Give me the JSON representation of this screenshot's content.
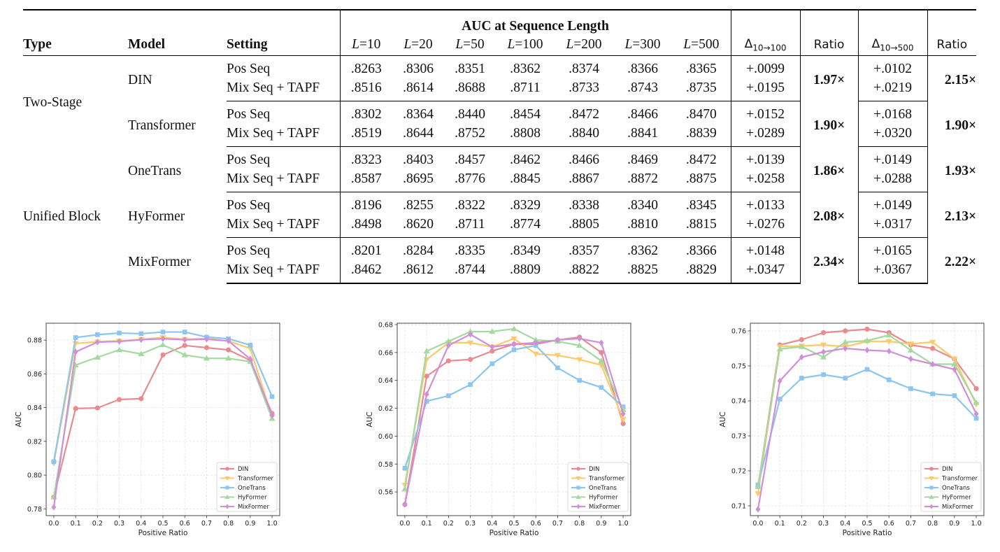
{
  "table": {
    "header_top": "AUC at Sequence Length",
    "col_type": "Type",
    "col_model": "Model",
    "col_setting": "Setting",
    "l_prefix": "L",
    "lengths": [
      "=10",
      "=20",
      "=50",
      "=100",
      "=200",
      "=300",
      "=500"
    ],
    "delta1_main": "Δ",
    "delta1_sub": "10→100",
    "ratio1": "Ratio",
    "delta2_main": "Δ",
    "delta2_sub": "10→500",
    "ratio2": "Ratio",
    "types": [
      "Two-Stage",
      "Unified Block"
    ],
    "rows": [
      {
        "model": "DIN",
        "settings": [
          "Pos Seq",
          "Mix Seq + TAPF"
        ],
        "values": [
          [
            ".8263",
            ".8306",
            ".8351",
            ".8362",
            ".8374",
            ".8366",
            ".8365"
          ],
          [
            ".8516",
            ".8614",
            ".8688",
            ".8711",
            ".8733",
            ".8743",
            ".8735"
          ]
        ],
        "d1": [
          "+.0099",
          "+.0195"
        ],
        "r1": "1.97×",
        "d2": [
          "+.0102",
          "+.0219"
        ],
        "r2": "2.15×"
      },
      {
        "model": "Transformer",
        "settings": [
          "Pos Seq",
          "Mix Seq + TAPF"
        ],
        "values": [
          [
            ".8302",
            ".8364",
            ".8440",
            ".8454",
            ".8472",
            ".8466",
            ".8470"
          ],
          [
            ".8519",
            ".8644",
            ".8752",
            ".8808",
            ".8840",
            ".8841",
            ".8839"
          ]
        ],
        "d1": [
          "+.0152",
          "+.0289"
        ],
        "r1": "1.90×",
        "d2": [
          "+.0168",
          "+.0320"
        ],
        "r2": "1.90×"
      },
      {
        "model": "OneTrans",
        "settings": [
          "Pos Seq",
          "Mix Seq + TAPF"
        ],
        "values": [
          [
            ".8323",
            ".8403",
            ".8457",
            ".8462",
            ".8466",
            ".8469",
            ".8472"
          ],
          [
            ".8587",
            ".8695",
            ".8776",
            ".8845",
            ".8867",
            ".8872",
            ".8875"
          ]
        ],
        "d1": [
          "+.0139",
          "+.0258"
        ],
        "r1": "1.86×",
        "d2": [
          "+.0149",
          "+.0288"
        ],
        "r2": "1.93×"
      },
      {
        "model": "HyFormer",
        "settings": [
          "Pos Seq",
          "Mix Seq + TAPF"
        ],
        "values": [
          [
            ".8196",
            ".8255",
            ".8322",
            ".8329",
            ".8338",
            ".8340",
            ".8345"
          ],
          [
            ".8498",
            ".8620",
            ".8711",
            ".8774",
            ".8805",
            ".8810",
            ".8815"
          ]
        ],
        "d1": [
          "+.0133",
          "+.0276"
        ],
        "r1": "2.08×",
        "d2": [
          "+.0149",
          "+.0317"
        ],
        "r2": "2.13×"
      },
      {
        "model": "MixFormer",
        "settings": [
          "Pos Seq",
          "Mix Seq + TAPF"
        ],
        "values": [
          [
            ".8201",
            ".8284",
            ".8335",
            ".8349",
            ".8357",
            ".8362",
            ".8366"
          ],
          [
            ".8462",
            ".8612",
            ".8744",
            ".8809",
            ".8822",
            ".8825",
            ".8829"
          ]
        ],
        "d1": [
          "+.0148",
          "+.0347"
        ],
        "r1": "2.34×",
        "d2": [
          "+.0165",
          "+.0367"
        ],
        "r2": "2.22×"
      }
    ]
  },
  "colors": {
    "DIN": "#e88b8f",
    "Transformer": "#fcc96b",
    "OneTrans": "#8cc5ef",
    "HyFormer": "#a4d9a0",
    "MixFormer": "#d08fd6"
  },
  "chart_data": [
    {
      "type": "line",
      "xlabel": "Positive Ratio",
      "ylabel": "AUC",
      "x": [
        0.0,
        0.1,
        0.2,
        0.3,
        0.4,
        0.5,
        0.6,
        0.7,
        0.8,
        0.9,
        1.0
      ],
      "xticks": [
        "0.0",
        "0.1",
        "0.2",
        "0.3",
        "0.4",
        "0.5",
        "0.6",
        "0.7",
        "0.8",
        "0.9",
        "1.0"
      ],
      "ylim": [
        0.776,
        0.89
      ],
      "yticks": [
        0.78,
        0.8,
        0.82,
        0.84,
        0.86,
        0.88
      ],
      "ytick_labels": [
        "0.78",
        "0.80",
        "0.82",
        "0.84",
        "0.86",
        "0.88"
      ],
      "grid": true,
      "legend": "lower-right",
      "series": [
        {
          "name": "DIN",
          "marker": "circle",
          "values": [
            0.787,
            0.8395,
            0.8398,
            0.8448,
            0.8453,
            0.8712,
            0.8768,
            0.8755,
            0.8742,
            0.868,
            0.8365
          ]
        },
        {
          "name": "Transformer",
          "marker": "triangle-down",
          "values": [
            0.807,
            0.878,
            0.879,
            0.8795,
            0.8805,
            0.8815,
            0.8805,
            0.881,
            0.8795,
            0.875,
            0.8345
          ]
        },
        {
          "name": "OneTrans",
          "marker": "square",
          "values": [
            0.808,
            0.8815,
            0.8832,
            0.8842,
            0.8838,
            0.8848,
            0.8848,
            0.8818,
            0.8808,
            0.877,
            0.8465
          ]
        },
        {
          "name": "HyFormer",
          "marker": "triangle-up",
          "values": [
            0.787,
            0.8652,
            0.8698,
            0.8742,
            0.8718,
            0.8772,
            0.8712,
            0.8692,
            0.8692,
            0.8672,
            0.8335
          ]
        },
        {
          "name": "MixFormer",
          "marker": "diamond",
          "values": [
            0.781,
            0.873,
            0.8788,
            0.8792,
            0.8802,
            0.8808,
            0.8802,
            0.8805,
            0.8795,
            0.8688,
            0.8355
          ]
        }
      ]
    },
    {
      "type": "line",
      "xlabel": "Positive Ratio",
      "ylabel": "AUC",
      "x": [
        0.0,
        0.1,
        0.2,
        0.3,
        0.4,
        0.5,
        0.6,
        0.7,
        0.8,
        0.9,
        1.0
      ],
      "xticks": [
        "0.0",
        "0.1",
        "0.2",
        "0.3",
        "0.4",
        "0.5",
        "0.6",
        "0.7",
        "0.8",
        "0.9",
        "1.0"
      ],
      "ylim": [
        0.543,
        0.681
      ],
      "yticks": [
        0.56,
        0.58,
        0.6,
        0.62,
        0.64,
        0.66,
        0.68
      ],
      "ytick_labels": [
        "0.56",
        "0.58",
        "0.60",
        "0.62",
        "0.64",
        "0.66",
        "0.68"
      ],
      "grid": true,
      "legend": "lower-right",
      "series": [
        {
          "name": "DIN",
          "marker": "circle",
          "values": [
            0.551,
            0.643,
            0.654,
            0.655,
            0.661,
            0.666,
            0.666,
            0.669,
            0.671,
            0.66,
            0.609
          ]
        },
        {
          "name": "Transformer",
          "marker": "triangle-down",
          "values": [
            0.565,
            0.655,
            0.667,
            0.667,
            0.664,
            0.67,
            0.659,
            0.658,
            0.655,
            0.651,
            0.612
          ]
        },
        {
          "name": "OneTrans",
          "marker": "square",
          "values": [
            0.577,
            0.625,
            0.629,
            0.637,
            0.652,
            0.662,
            0.665,
            0.649,
            0.64,
            0.635,
            0.621
          ]
        },
        {
          "name": "HyFormer",
          "marker": "triangle-up",
          "values": [
            0.562,
            0.661,
            0.668,
            0.675,
            0.675,
            0.677,
            0.669,
            0.668,
            0.665,
            0.654,
            0.619
          ]
        },
        {
          "name": "MixFormer",
          "marker": "diamond",
          "values": [
            0.551,
            0.63,
            0.665,
            0.673,
            0.664,
            0.666,
            0.667,
            0.669,
            0.67,
            0.667,
            0.616
          ]
        }
      ]
    },
    {
      "type": "line",
      "xlabel": "Positive Ratio",
      "ylabel": "AUC",
      "x": [
        0.0,
        0.1,
        0.2,
        0.3,
        0.4,
        0.5,
        0.6,
        0.7,
        0.8,
        0.9,
        1.0
      ],
      "xticks": [
        "0.0",
        "0.1",
        "0.2",
        "0.3",
        "0.4",
        "0.5",
        "0.6",
        "0.7",
        "0.8",
        "0.9",
        "1.0"
      ],
      "ylim": [
        0.7072,
        0.7622
      ],
      "yticks": [
        0.71,
        0.72,
        0.73,
        0.74,
        0.75,
        0.76
      ],
      "ytick_labels": [
        "0.71",
        "0.72",
        "0.73",
        "0.74",
        "0.75",
        "0.76"
      ],
      "grid": true,
      "legend": "lower-right",
      "series": [
        {
          "name": "DIN",
          "marker": "circle",
          "values": [
            0.7155,
            0.756,
            0.7575,
            0.7595,
            0.76,
            0.7605,
            0.7595,
            0.756,
            0.755,
            0.752,
            0.7435
          ]
        },
        {
          "name": "Transformer",
          "marker": "triangle-down",
          "values": [
            0.7135,
            0.7555,
            0.7557,
            0.756,
            0.7555,
            0.757,
            0.757,
            0.7563,
            0.7568,
            0.752,
            0.739
          ]
        },
        {
          "name": "OneTrans",
          "marker": "square",
          "values": [
            0.716,
            0.7405,
            0.7465,
            0.7475,
            0.7465,
            0.749,
            0.746,
            0.7435,
            0.742,
            0.7415,
            0.735
          ]
        },
        {
          "name": "HyFormer",
          "marker": "triangle-up",
          "values": [
            0.7155,
            0.7548,
            0.7555,
            0.7525,
            0.7568,
            0.7572,
            0.7588,
            0.7545,
            0.7505,
            0.7505,
            0.7395
          ]
        },
        {
          "name": "MixFormer",
          "marker": "diamond",
          "values": [
            0.709,
            0.7457,
            0.7525,
            0.754,
            0.755,
            0.7545,
            0.7542,
            0.752,
            0.7505,
            0.749,
            0.7363
          ]
        }
      ]
    }
  ]
}
